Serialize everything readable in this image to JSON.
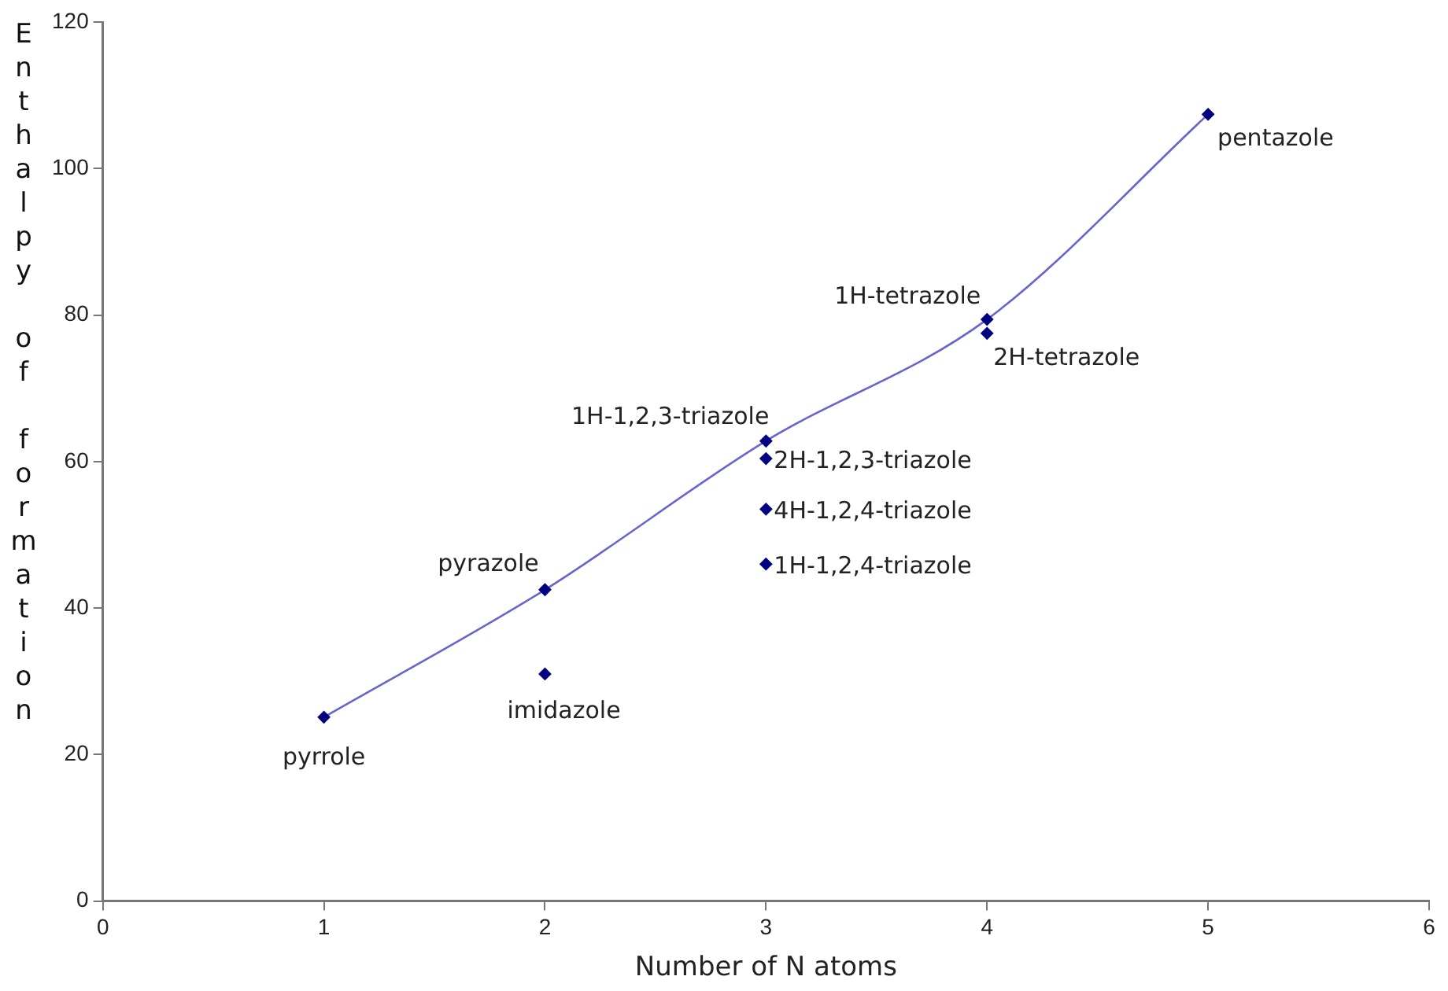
{
  "chart_data": {
    "type": "scatter",
    "xlabel": "Number of N atoms",
    "ylabel": "Enthalpy of formation",
    "xlim": [
      0,
      6
    ],
    "xticks": [
      0,
      1,
      2,
      3,
      4,
      5,
      6
    ],
    "ylim": [
      0,
      120
    ],
    "yticks": [
      0,
      20,
      40,
      60,
      80,
      100,
      120
    ],
    "grid": false,
    "legend": false,
    "marker": "diamond",
    "series": [
      {
        "color": "#000080",
        "x": [
          1,
          2,
          2,
          3,
          3,
          3,
          3,
          4,
          4,
          5
        ],
        "values": [
          25.1,
          42.5,
          31,
          62.8,
          60.4,
          53.5,
          46,
          79.4,
          77.5,
          107.4
        ]
      },
      {
        "type": "line",
        "color": "#6666cc",
        "marker": "none",
        "line_style": "solid",
        "x": [
          1,
          2,
          3,
          4,
          5
        ],
        "values": [
          25.1,
          42.5,
          62.8,
          79.4,
          107.4
        ]
      }
    ],
    "annotations": [
      {
        "text": "pyrrole",
        "x": 1,
        "y": 25.1
      },
      {
        "text": "pyrazole",
        "x": 2,
        "y": 42.5
      },
      {
        "text": "imidazole",
        "x": 2,
        "y": 31
      },
      {
        "text": "1H-1,2,3-triazole",
        "x": 3,
        "y": 62.8
      },
      {
        "text": "2H-1,2,3-triazole",
        "x": 3,
        "y": 60.4
      },
      {
        "text": "4H-1,2,4-triazole",
        "x": 3,
        "y": 53.5
      },
      {
        "text": "1H-1,2,4-triazole",
        "x": 3,
        "y": 46
      },
      {
        "text": "1H-tetrazole",
        "x": 4,
        "y": 79.4
      },
      {
        "text": "2H-tetrazole",
        "x": 4,
        "y": 77.5
      },
      {
        "text": "pentazole",
        "x": 5,
        "y": 107.4
      }
    ]
  }
}
